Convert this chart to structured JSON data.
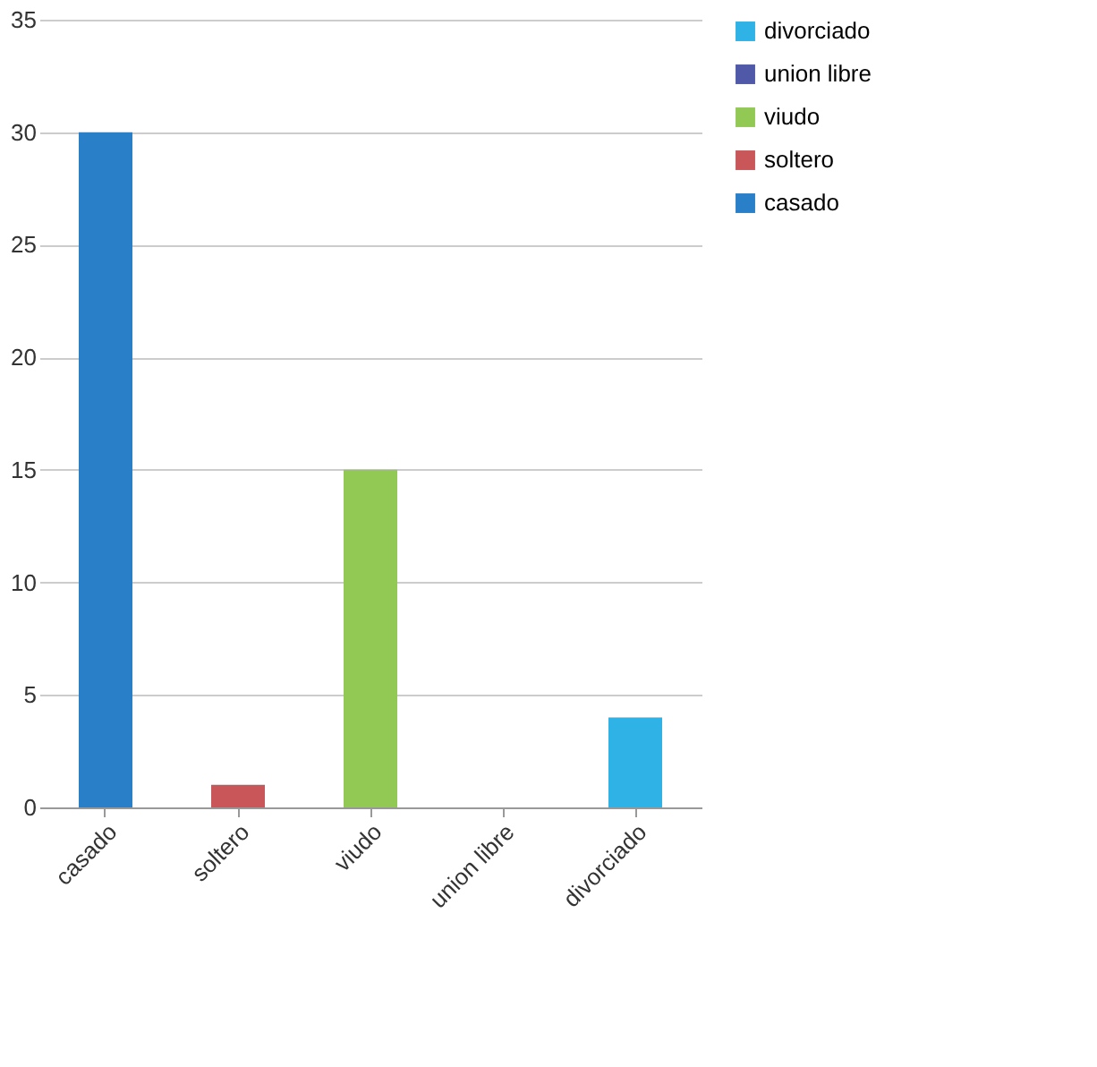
{
  "chart_data": {
    "type": "bar",
    "categories": [
      "casado",
      "soltero",
      "viudo",
      "union libre",
      "divorciado"
    ],
    "series": [
      {
        "name": "casado",
        "color": "#2a7fc9",
        "values": [
          30,
          null,
          null,
          null,
          null
        ]
      },
      {
        "name": "soltero",
        "color": "#c9575a",
        "values": [
          null,
          1,
          null,
          null,
          null
        ]
      },
      {
        "name": "viudo",
        "color": "#92c955",
        "values": [
          null,
          null,
          15,
          null,
          null
        ]
      },
      {
        "name": "union libre",
        "color": "#4f59a8",
        "values": [
          null,
          null,
          null,
          0,
          null
        ]
      },
      {
        "name": "divorciado",
        "color": "#2fb2e6",
        "values": [
          null,
          null,
          null,
          null,
          4
        ]
      }
    ],
    "ylim": [
      0,
      35
    ],
    "yticks": [
      0,
      5,
      10,
      15,
      20,
      25,
      30,
      35
    ],
    "grid": "y",
    "legend": "right"
  }
}
